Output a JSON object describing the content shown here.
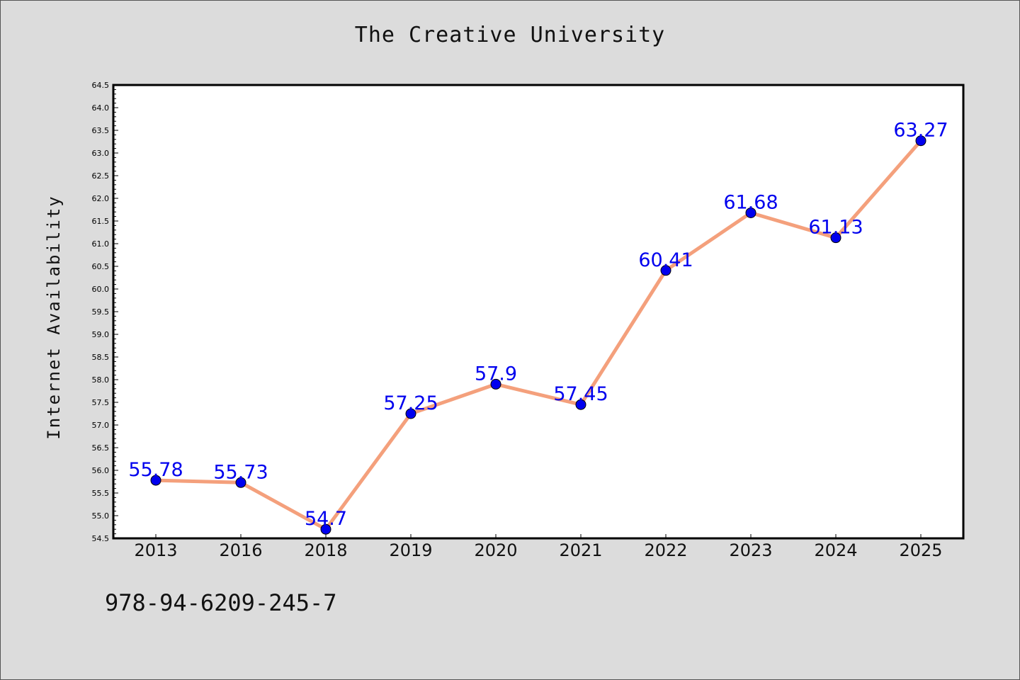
{
  "title": "The Creative University",
  "isbn": "978-94-6209-245-7",
  "colors": {
    "background": "#dcdcdc",
    "plot_background": "#ffffff",
    "line": "#f4a07c",
    "marker": "#0000ee",
    "data_label": "#0000ee"
  },
  "chart_data": {
    "type": "line",
    "title": "The Creative University",
    "xlabel": "",
    "ylabel": "Internet Availability",
    "categories": [
      "2013",
      "2016",
      "2018",
      "2019",
      "2020",
      "2021",
      "2022",
      "2023",
      "2024",
      "2025"
    ],
    "series": [
      {
        "values": [
          55.78,
          55.73,
          54.7,
          57.25,
          57.9,
          57.45,
          60.41,
          61.68,
          61.13,
          63.27
        ],
        "data_labels": [
          "55.78",
          "55.73",
          "54.7",
          "57.25",
          "57.9",
          "57.45",
          "60.41",
          "61.68",
          "61.13",
          "63.27"
        ]
      }
    ],
    "ylim": [
      54.5,
      64.5
    ],
    "y_tick_step": 0.5,
    "y_tick_labels": [
      "54.5",
      "55.0",
      "55.5",
      "56.0",
      "56.5",
      "57.0",
      "57.5",
      "58.0",
      "58.5",
      "59.0",
      "59.5",
      "60.0",
      "60.5",
      "61.0",
      "61.5",
      "62.0",
      "62.5",
      "63.0",
      "63.5",
      "64.0",
      "64.5"
    ],
    "grid": false,
    "legend": "none"
  }
}
